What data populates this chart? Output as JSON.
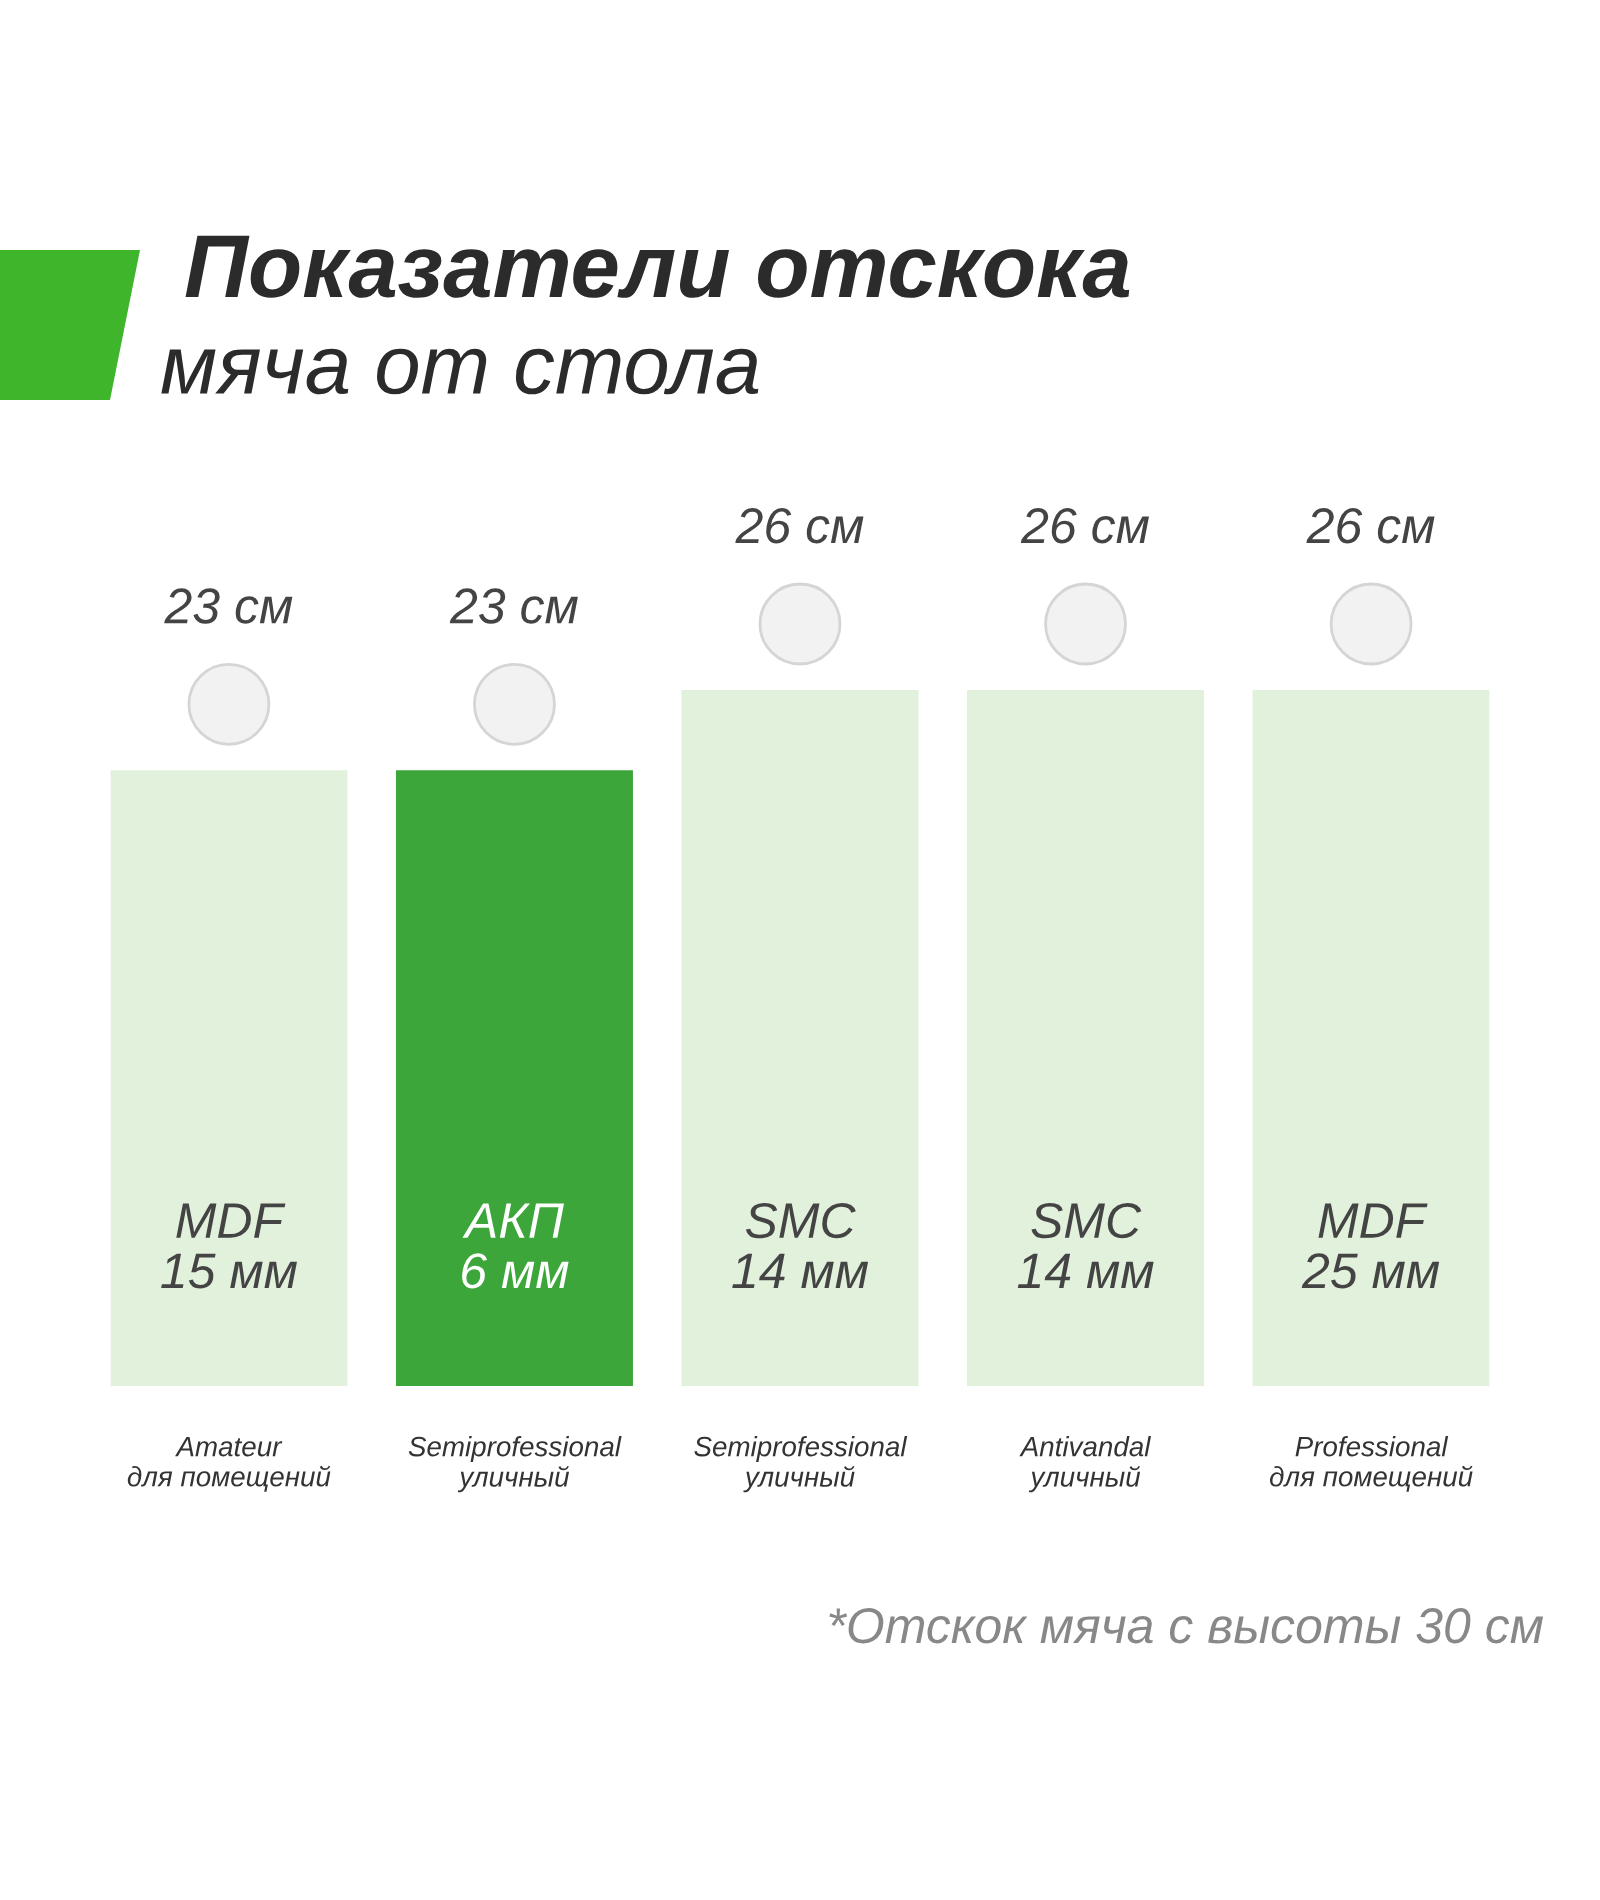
{
  "chart_data": {
    "type": "bar",
    "title": "Показатели отскока",
    "subtitle": "мяча от стола",
    "categories": [
      "Amateur\nдля помещений",
      "Semiprofessional\nуличный",
      "Semiprofessional\nуличный",
      "Antivandal\nуличный",
      "Professional\nдля помещений"
    ],
    "values": [
      23,
      23,
      26,
      26,
      26
    ],
    "value_labels": [
      "23 см",
      "23 см",
      "26 см",
      "26 см",
      "26 см"
    ],
    "colors": [
      "#e2f1db",
      "#3da63a",
      "#e2f1db",
      "#e2f1db",
      "#e2f1db"
    ],
    "annotations": [
      "MDF\n15 мм",
      "АКП\n6 мм",
      "SMC\n14 мм",
      "SMC\n14 мм",
      "MDF\n25 мм",
      "*Отскок мяча с высоты 30 см"
    ],
    "grid": false,
    "legend": false
  }
}
